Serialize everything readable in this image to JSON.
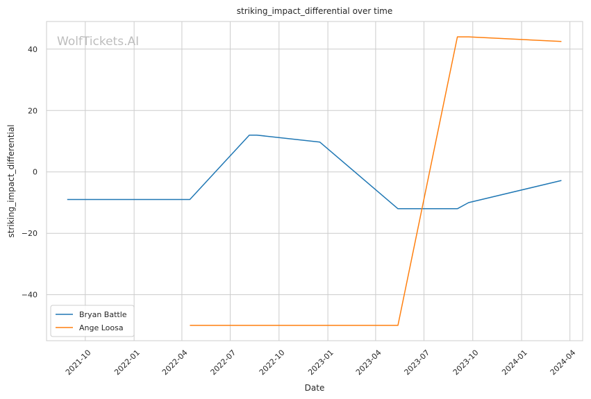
{
  "chart_data": {
    "type": "line",
    "title": "striking_impact_differential over time",
    "xlabel": "Date",
    "ylabel": "striking_impact_differential",
    "watermark": "WolfTickets.AI",
    "x_ticks": [
      "2021-10",
      "2022-01",
      "2022-04",
      "2022-07",
      "2022-10",
      "2023-01",
      "2023-04",
      "2023-07",
      "2023-10",
      "2024-01",
      "2024-04"
    ],
    "y_ticks": [
      40,
      20,
      0,
      -20,
      -40
    ],
    "y_tick_labels": [
      "40",
      "20",
      "0",
      "−20",
      "−40"
    ],
    "xlim": [
      "2021-07-20",
      "2024-04-25"
    ],
    "ylim": [
      -55,
      49
    ],
    "grid": true,
    "legend_position": "lower-left",
    "series": [
      {
        "name": "Bryan Battle",
        "color": "#1f77b4",
        "points": [
          {
            "x": "2021-08-28",
            "y": -9
          },
          {
            "x": "2022-04-16",
            "y": -9
          },
          {
            "x": "2022-08-06",
            "y": 12
          },
          {
            "x": "2022-08-20",
            "y": 12
          },
          {
            "x": "2022-12-17",
            "y": 9.7
          },
          {
            "x": "2023-05-13",
            "y": -12
          },
          {
            "x": "2023-09-02",
            "y": -12
          },
          {
            "x": "2023-09-23",
            "y": -10
          },
          {
            "x": "2024-03-16",
            "y": -2.8
          }
        ]
      },
      {
        "name": "Ange Loosa",
        "color": "#ff7f0e",
        "points": [
          {
            "x": "2022-04-16",
            "y": -50
          },
          {
            "x": "2023-05-13",
            "y": -50
          },
          {
            "x": "2023-09-02",
            "y": 44
          },
          {
            "x": "2023-09-23",
            "y": 44
          },
          {
            "x": "2024-03-16",
            "y": 42.5
          }
        ]
      }
    ]
  }
}
